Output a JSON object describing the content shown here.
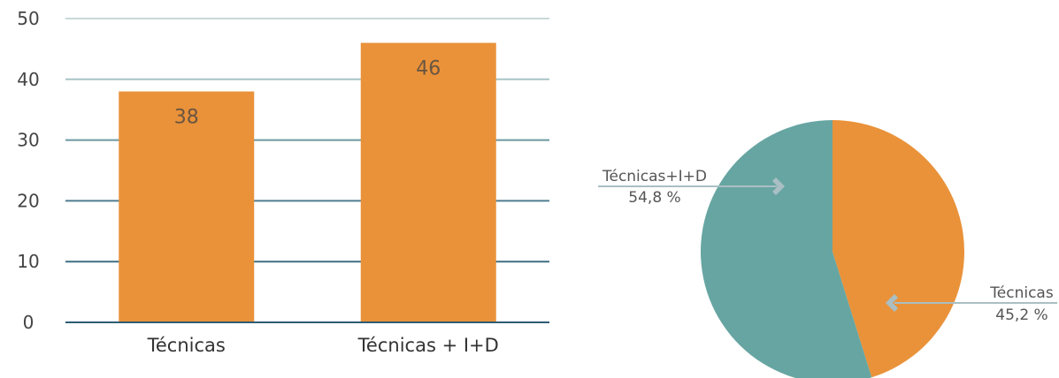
{
  "chart_data": [
    {
      "type": "bar",
      "categories": [
        "Técnicas",
        "Técnicas + I+D"
      ],
      "values": [
        38,
        46
      ],
      "data_labels": [
        "38",
        "46"
      ],
      "ylim": [
        0,
        50
      ],
      "yticks": [
        "0",
        "10",
        "20",
        "30",
        "40",
        "50"
      ],
      "grid": true,
      "bar_color": "#E9923A",
      "grid_colors": [
        "#2D5C73",
        "#3F6F82",
        "#4F7E8E",
        "#6E97A1",
        "#A9C4C6",
        "#C7D9D8"
      ]
    },
    {
      "type": "pie",
      "slices": [
        {
          "label": "Técnicas",
          "value": 45.2,
          "value_label": "45,2 %",
          "color": "#E9923A"
        },
        {
          "label": "Técnicas+I+D",
          "value": 54.8,
          "value_label": "54,8 %",
          "color": "#67A5A2"
        }
      ],
      "leader_color": "#A9BFC4"
    }
  ]
}
